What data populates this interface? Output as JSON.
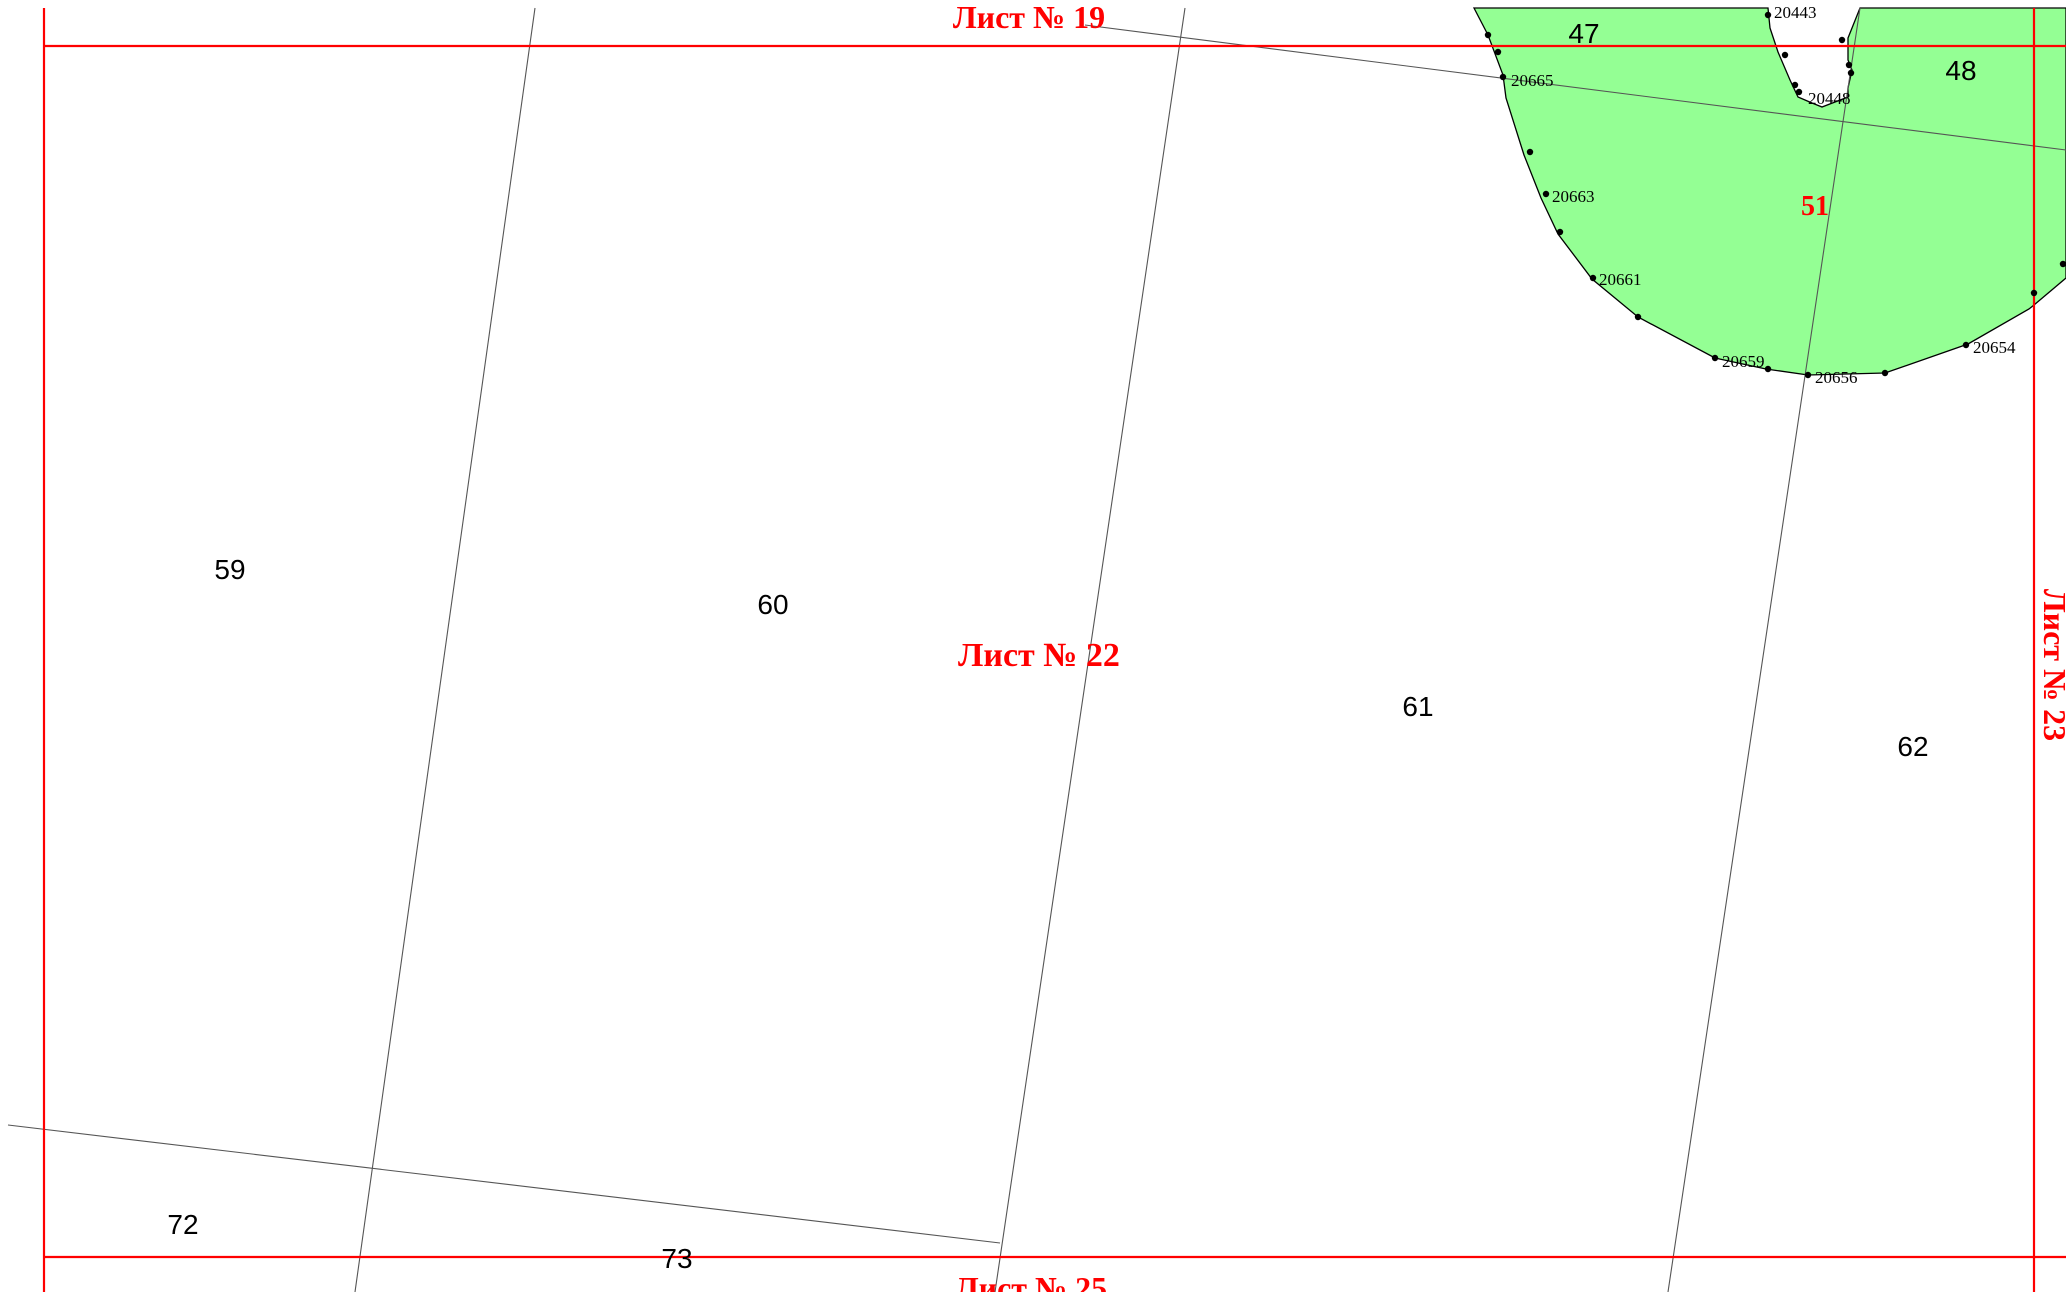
{
  "colors": {
    "sheet_border": "#ff0000",
    "grid_line": "#555555",
    "zone_fill": "#94ff94",
    "zone_outline": "#000000"
  },
  "sheets": {
    "top": "Лист № 19",
    "center": "Лист № 22",
    "bottom": "Лист № 25",
    "right": "Лист № 23"
  },
  "parcels": {
    "p47": "47",
    "p48": "48",
    "p59": "59",
    "p60": "60",
    "p61": "61",
    "p62": "62",
    "p72": "72",
    "p73": "73"
  },
  "zone": {
    "label": "51"
  },
  "points": {
    "pt20443": "20443",
    "pt20448": "20448",
    "pt20665": "20665",
    "pt20663": "20663",
    "pt20661": "20661",
    "pt20659": "20659",
    "pt20656": "20656",
    "pt20654": "20654"
  }
}
